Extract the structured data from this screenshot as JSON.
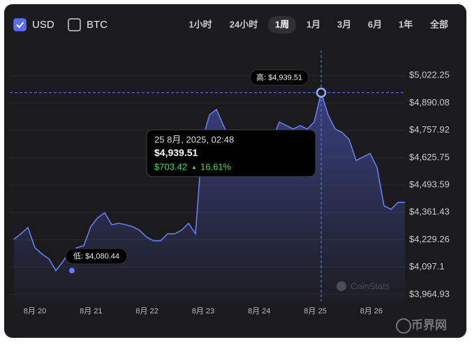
{
  "chart_data": {
    "type": "area",
    "toggles": [
      {
        "label": "USD",
        "checked": true
      },
      {
        "label": "BTC",
        "checked": false
      }
    ],
    "ranges": [
      "1小时",
      "24小时",
      "1周",
      "1月",
      "3月",
      "6月",
      "1年",
      "全部"
    ],
    "active_range": 2,
    "series": [
      {
        "color": "#6a7bf4",
        "values": [
          4231.3,
          4258.2,
          4288.6,
          4190.8,
          4160.5,
          4136.9,
          4080.44,
          4123.4,
          4173.9,
          4190.8,
          4200.9,
          4292.0,
          4335.8,
          4359.4,
          4302.1,
          4308.8,
          4302.1,
          4292.0,
          4275.1,
          4241.4,
          4224.5,
          4224.5,
          4258.2,
          4258.2,
          4275.1,
          4308.8,
          4258.2,
          4713.4,
          4831.4,
          4858.4,
          4780.8,
          4713.4,
          4696.5,
          4713.4,
          4730.3,
          4713.4,
          4696.5,
          4713.4,
          4797.7,
          4780.8,
          4764.0,
          4780.8,
          4764.0,
          4797.7,
          4939.51,
          4831.4,
          4764.0,
          4747.1,
          4713.4,
          4612.2,
          4629.1,
          4645.9,
          4578.5,
          4393.1,
          4376.2,
          4409.9,
          4409.9
        ]
      }
    ],
    "ylim": [
      3931,
      5151
    ],
    "yticks": [
      {
        "value": 3964.93,
        "label": "$3,964.93"
      },
      {
        "value": 4097.1,
        "label": "$4,097.1"
      },
      {
        "value": 4229.26,
        "label": "$4,229.26"
      },
      {
        "value": 4361.43,
        "label": "$4,361.43"
      },
      {
        "value": 4493.59,
        "label": "$4,493.59"
      },
      {
        "value": 4625.75,
        "label": "$4,625.75"
      },
      {
        "value": 4757.92,
        "label": "$4,757.92"
      },
      {
        "value": 4890.08,
        "label": "$4,890.08"
      },
      {
        "value": 5022.25,
        "label": "$5,022.25"
      }
    ],
    "xticks": [
      "8月 20",
      "8月 21",
      "8月 22",
      "8月 23",
      "8月 24",
      "8月 25",
      "8月 26"
    ],
    "grid": true,
    "high": {
      "index": 44,
      "label": "高: $4,939.51"
    },
    "low": {
      "index": 6,
      "label": "低: $4,080.44"
    },
    "tooltip": {
      "date": "25 8月, 2025, 02:48",
      "price": "$4,939.51",
      "change": "$703.42",
      "arrow": "▲",
      "percent": "16.61%"
    },
    "watermark": "CoinStats"
  },
  "footer_logo": "币界网"
}
